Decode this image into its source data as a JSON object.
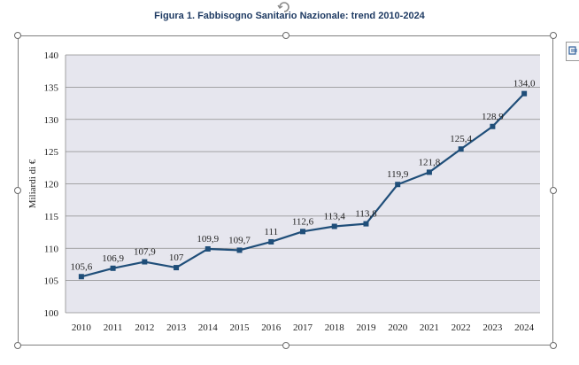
{
  "figure": {
    "title": "Figura 1. Fabbisogno Sanitario Nazionale: trend 2010-2024"
  },
  "colors": {
    "line": "#1f4e79",
    "plot_background": "#e6e6ee",
    "gridline": "#8c8c8c",
    "title": "#1f3b63"
  },
  "icons": {
    "rotate": "rotate-icon",
    "layout_options": "layout-options-icon"
  },
  "chart_data": {
    "type": "line",
    "title": "",
    "xlabel": "",
    "ylabel": "Miliardi di €",
    "ylim": [
      100,
      140
    ],
    "yticks": [
      "100",
      "105",
      "110",
      "115",
      "120",
      "125",
      "130",
      "135",
      "140"
    ],
    "categories": [
      "2010",
      "2011",
      "2012",
      "2013",
      "2014",
      "2015",
      "2016",
      "2017",
      "2018",
      "2019",
      "2020",
      "2021",
      "2022",
      "2023",
      "2024"
    ],
    "series": [
      {
        "values": [
          105.6,
          106.9,
          107.9,
          107,
          109.9,
          109.7,
          111,
          112.6,
          113.4,
          113.8,
          119.9,
          121.8,
          125.4,
          128.9,
          134.0
        ],
        "labels": [
          "105,6",
          "106,9",
          "107,9",
          "107",
          "109,9",
          "109,7",
          "111",
          "112,6",
          "113,4",
          "113,8",
          "119,9",
          "121,8",
          "125,4",
          "128,9",
          "134,0"
        ]
      }
    ],
    "grid": true,
    "legend": "none",
    "marker": "square"
  }
}
